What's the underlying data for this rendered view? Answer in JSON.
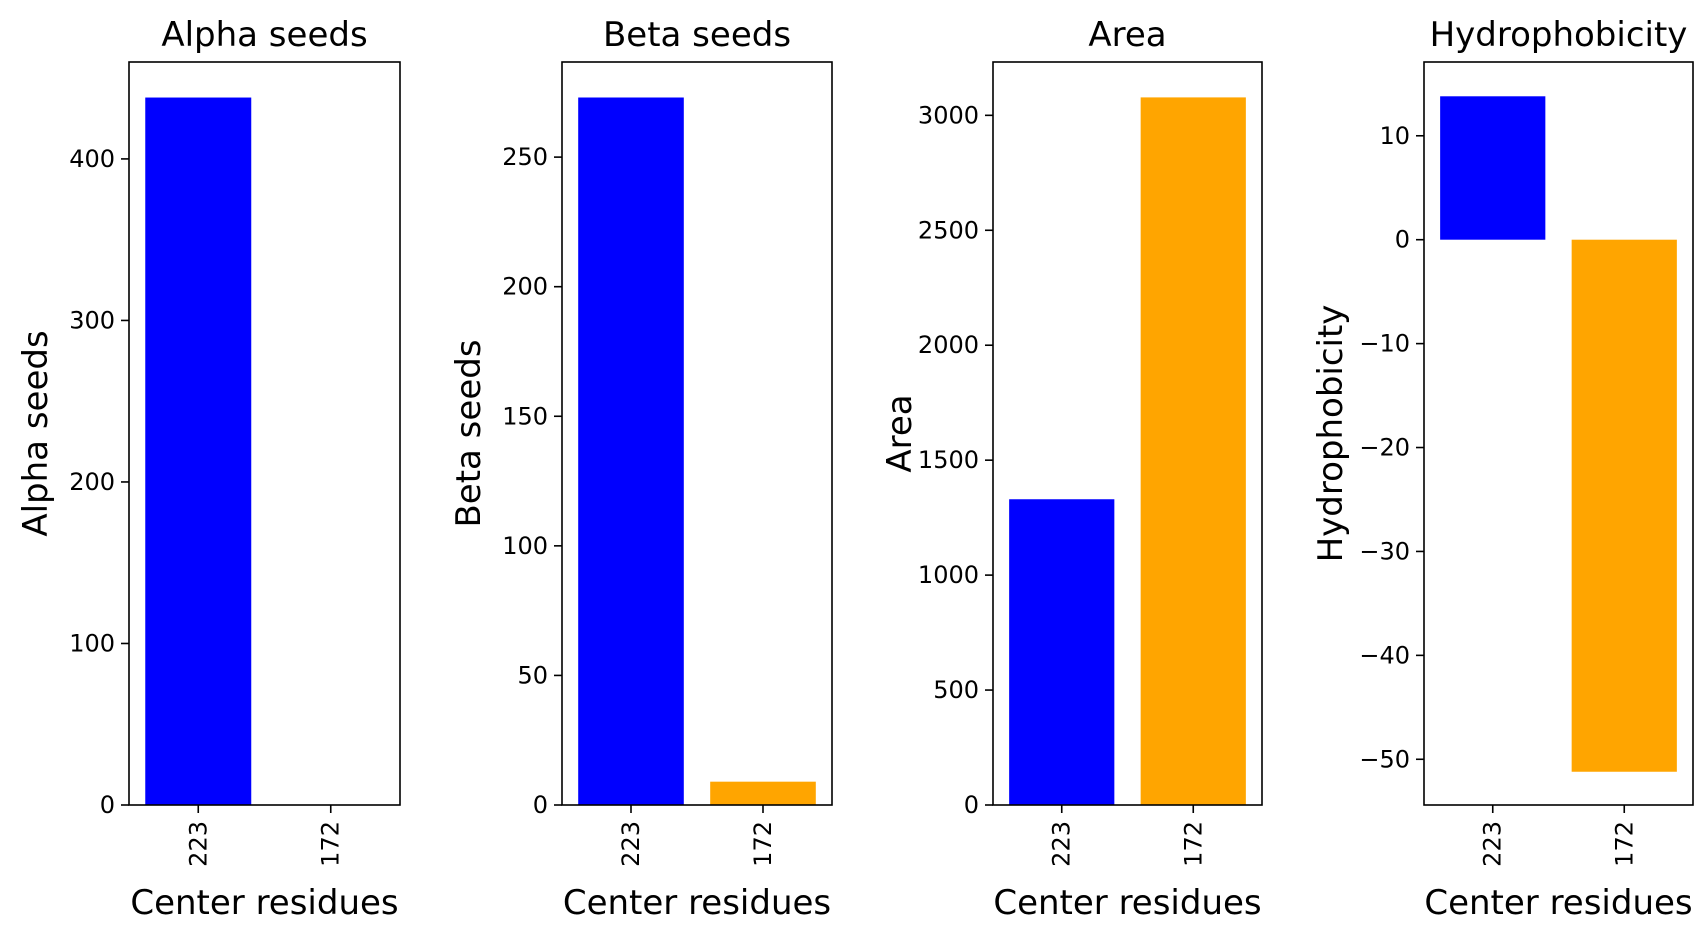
{
  "chart_data": [
    {
      "type": "bar",
      "title": "Alpha seeds",
      "xlabel": "Center residues",
      "ylabel": "Alpha seeds",
      "categories": [
        "223",
        "172"
      ],
      "values": [
        438,
        0
      ],
      "colors": [
        "#0000ff",
        "#ffa500"
      ],
      "ylim": [
        0,
        460
      ],
      "yticks": [
        0,
        100,
        200,
        300,
        400
      ],
      "ytick_labels": [
        "0",
        "100",
        "200",
        "300",
        "400"
      ]
    },
    {
      "type": "bar",
      "title": "Beta seeds",
      "xlabel": "Center residues",
      "ylabel": "Beta seeds",
      "categories": [
        "223",
        "172"
      ],
      "values": [
        273,
        9
      ],
      "colors": [
        "#0000ff",
        "#ffa500"
      ],
      "ylim": [
        0,
        286.7
      ],
      "yticks": [
        0,
        50,
        100,
        150,
        200,
        250
      ],
      "ytick_labels": [
        "0",
        "50",
        "100",
        "150",
        "200",
        "250"
      ]
    },
    {
      "type": "bar",
      "title": "Area",
      "xlabel": "Center residues",
      "ylabel": "Area",
      "categories": [
        "223",
        "172"
      ],
      "values": [
        1330,
        3078
      ],
      "colors": [
        "#0000ff",
        "#ffa500"
      ],
      "ylim": [
        0,
        3232
      ],
      "yticks": [
        0,
        500,
        1000,
        1500,
        2000,
        2500,
        3000
      ],
      "ytick_labels": [
        "0",
        "500",
        "1000",
        "1500",
        "2000",
        "2500",
        "3000"
      ]
    },
    {
      "type": "bar",
      "title": "Hydrophobicity",
      "xlabel": "Center residues",
      "ylabel": "Hydrophobicity",
      "categories": [
        "223",
        "172"
      ],
      "values": [
        13.8,
        -51.2
      ],
      "colors": [
        "#0000ff",
        "#ffa500"
      ],
      "ylim": [
        -54.4,
        17.1
      ],
      "yticks": [
        -50,
        -40,
        -30,
        -20,
        -10,
        0,
        10
      ],
      "ytick_labels": [
        "−50",
        "−40",
        "−30",
        "−20",
        "−10",
        "0",
        "10"
      ]
    }
  ]
}
